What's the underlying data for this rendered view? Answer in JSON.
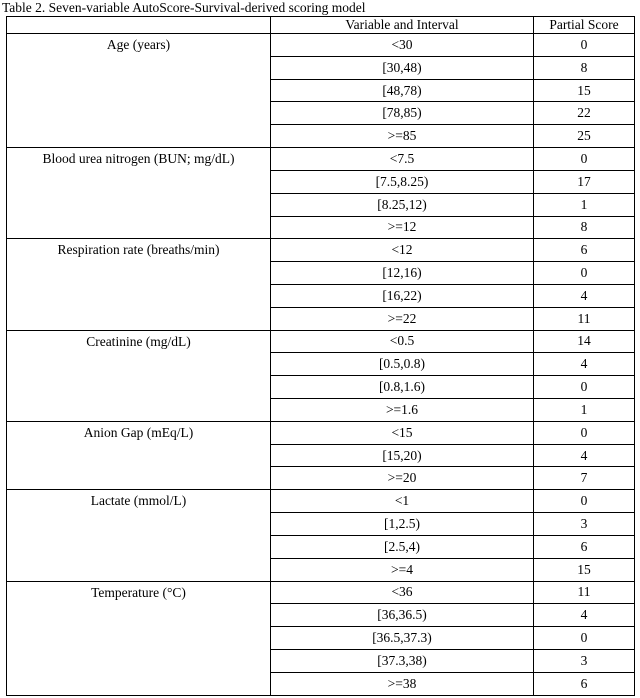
{
  "title": "Table 2. Seven-variable AutoScore-Survival-derived scoring model",
  "table": {
    "headers": [
      "",
      "Variable and Interval",
      "Partial Score"
    ],
    "groups": [
      {
        "variable": "Age (years)",
        "rows": [
          {
            "interval": "<30",
            "score": "0"
          },
          {
            "interval": "[30,48)",
            "score": "8"
          },
          {
            "interval": "[48,78)",
            "score": "15"
          },
          {
            "interval": "[78,85)",
            "score": "22"
          },
          {
            "interval": ">=85",
            "score": "25"
          }
        ]
      },
      {
        "variable": "Blood urea nitrogen (BUN; mg/dL)",
        "rows": [
          {
            "interval": "<7.5",
            "score": "0"
          },
          {
            "interval": "[7.5,8.25)",
            "score": "17"
          },
          {
            "interval": "[8.25,12)",
            "score": "1"
          },
          {
            "interval": ">=12",
            "score": "8"
          }
        ]
      },
      {
        "variable": "Respiration rate (breaths/min)",
        "rows": [
          {
            "interval": "<12",
            "score": "6"
          },
          {
            "interval": "[12,16)",
            "score": "0"
          },
          {
            "interval": "[16,22)",
            "score": "4"
          },
          {
            "interval": ">=22",
            "score": "11"
          }
        ]
      },
      {
        "variable": "Creatinine (mg/dL)",
        "rows": [
          {
            "interval": "<0.5",
            "score": "14"
          },
          {
            "interval": "[0.5,0.8)",
            "score": "4"
          },
          {
            "interval": "[0.8,1.6)",
            "score": "0"
          },
          {
            "interval": ">=1.6",
            "score": "1"
          }
        ]
      },
      {
        "variable": "Anion Gap (mEq/L)",
        "rows": [
          {
            "interval": "<15",
            "score": "0"
          },
          {
            "interval": "[15,20)",
            "score": "4"
          },
          {
            "interval": ">=20",
            "score": "7"
          }
        ]
      },
      {
        "variable": "Lactate (mmol/L)",
        "rows": [
          {
            "interval": "<1",
            "score": "0"
          },
          {
            "interval": "[1,2.5)",
            "score": "3"
          },
          {
            "interval": "[2.5,4)",
            "score": "6"
          },
          {
            "interval": ">=4",
            "score": "15"
          }
        ]
      },
      {
        "variable": "Temperature (°C)",
        "rows": [
          {
            "interval": "<36",
            "score": "11"
          },
          {
            "interval": "[36,36.5)",
            "score": "4"
          },
          {
            "interval": "[36.5,37.3)",
            "score": "0"
          },
          {
            "interval": "[37.3,38)",
            "score": "3"
          },
          {
            "interval": ">=38",
            "score": "6"
          }
        ]
      }
    ]
  }
}
